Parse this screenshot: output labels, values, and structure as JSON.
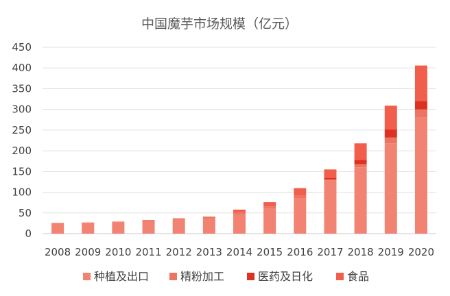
{
  "chart_data": {
    "type": "bar",
    "stacked": true,
    "title": "中国魔芋市场规模（亿元）",
    "categories": [
      "2008",
      "2009",
      "2010",
      "2011",
      "2012",
      "2013",
      "2014",
      "2015",
      "2016",
      "2017",
      "2018",
      "2019",
      "2020"
    ],
    "ylim": [
      0,
      450
    ],
    "yticks": [
      0,
      50,
      100,
      150,
      200,
      250,
      300,
      350,
      400,
      450
    ],
    "grid": true,
    "legend_position": "bottom",
    "series": [
      {
        "name": "种植及出口",
        "color": "#F28272",
        "values": [
          25,
          26,
          27,
          30,
          34,
          36,
          47,
          60,
          86,
          128,
          160,
          218,
          280
        ]
      },
      {
        "name": "精粉加工",
        "color": "#EC7462",
        "values": [
          1,
          1,
          1,
          2,
          2,
          3,
          4,
          6,
          6,
          3,
          8,
          14,
          20
        ]
      },
      {
        "name": "医药及日化",
        "color": "#DD3121",
        "values": [
          0,
          0,
          0,
          0,
          0,
          0,
          0,
          0,
          0,
          3,
          10,
          20,
          20
        ]
      },
      {
        "name": "食品",
        "color": "#F25E4C",
        "values": [
          0,
          0,
          1,
          1,
          1,
          2,
          7,
          10,
          18,
          21,
          40,
          57,
          86
        ]
      }
    ]
  }
}
